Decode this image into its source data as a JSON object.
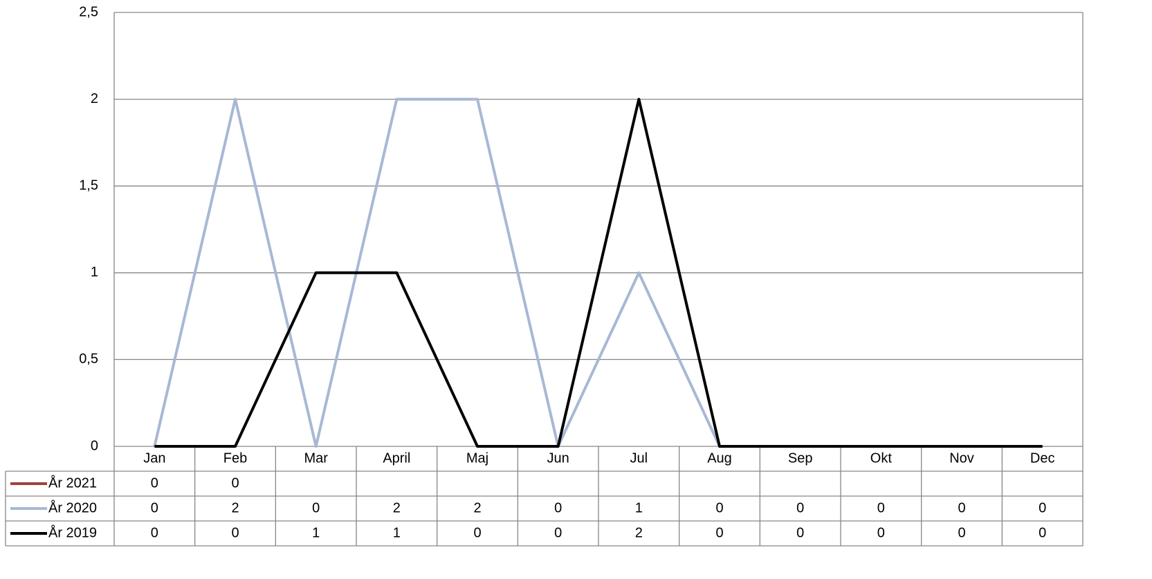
{
  "chart_data": {
    "type": "line",
    "categories": [
      "Jan",
      "Feb",
      "Mar",
      "April",
      "Maj",
      "Jun",
      "Jul",
      "Aug",
      "Sep",
      "Okt",
      "Nov",
      "Dec"
    ],
    "series": [
      {
        "name": "År 2021",
        "color": "#a0413f",
        "values": [
          0,
          0,
          null,
          null,
          null,
          null,
          null,
          null,
          null,
          null,
          null,
          null
        ]
      },
      {
        "name": "År 2020",
        "color": "#a8b8d4",
        "values": [
          0,
          2,
          0,
          2,
          2,
          0,
          1,
          0,
          0,
          0,
          0,
          0
        ]
      },
      {
        "name": "År 2019",
        "color": "#000000",
        "values": [
          0,
          0,
          1,
          1,
          0,
          0,
          2,
          0,
          0,
          0,
          0,
          0
        ]
      }
    ],
    "ylim": [
      0,
      2.5
    ],
    "yticks": [
      0,
      {
        "value": 0.5,
        "label": "0,5"
      },
      1,
      {
        "value": 1.5,
        "label": "1,5"
      },
      2,
      {
        "value": 2.5,
        "label": "2,5"
      }
    ],
    "grid": true
  }
}
